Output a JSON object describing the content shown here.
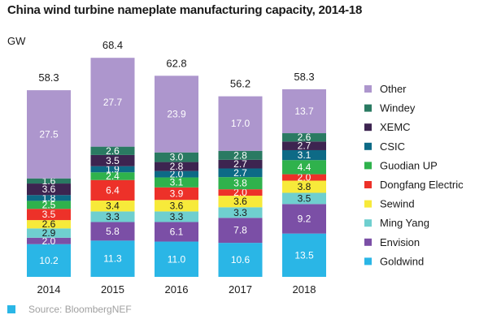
{
  "title": "China wind turbine nameplate manufacturing capacity, 2014-18",
  "unit": "GW",
  "source": "Source: BloombergNEF",
  "chart_data": {
    "type": "bar",
    "stacked": true,
    "title": "China wind turbine nameplate manufacturing capacity, 2014-18",
    "ylabel": "GW",
    "xlabel": "",
    "categories": [
      "2014",
      "2015",
      "2016",
      "2017",
      "2018"
    ],
    "totals": [
      "58.3",
      "68.4",
      "62.8",
      "56.2",
      "58.3"
    ],
    "legend_position": "right",
    "grid": false,
    "series": [
      {
        "name": "Goldwind",
        "color": "#2ab6e6",
        "values": [
          10.2,
          11.3,
          11.0,
          10.6,
          13.5
        ]
      },
      {
        "name": "Envision",
        "color": "#7b4fa6",
        "values": [
          2.0,
          5.8,
          6.1,
          7.8,
          9.2
        ]
      },
      {
        "name": "Ming Yang",
        "color": "#6fcfcf",
        "values": [
          2.9,
          3.3,
          3.3,
          3.3,
          3.5
        ]
      },
      {
        "name": "Sewind",
        "color": "#f7ea3a",
        "values": [
          2.6,
          3.4,
          3.6,
          3.6,
          3.8
        ]
      },
      {
        "name": "Dongfang Electric",
        "color": "#ed3129",
        "values": [
          3.5,
          6.4,
          3.9,
          2.0,
          2.0
        ]
      },
      {
        "name": "Guodian UP",
        "color": "#2fb24c",
        "values": [
          2.5,
          2.4,
          3.1,
          3.8,
          4.4
        ]
      },
      {
        "name": "CSIC",
        "color": "#0d6a86",
        "values": [
          1.8,
          1.9,
          2.0,
          2.7,
          3.1
        ]
      },
      {
        "name": "XEMC",
        "color": "#3d2450",
        "values": [
          3.6,
          3.5,
          2.8,
          2.7,
          2.7
        ]
      },
      {
        "name": "Windey",
        "color": "#2a7a62",
        "values": [
          1.6,
          2.6,
          3.0,
          2.8,
          2.6
        ]
      },
      {
        "name": "Other",
        "color": "#ad96cd",
        "values": [
          27.5,
          27.7,
          23.9,
          17.0,
          13.7
        ]
      }
    ]
  }
}
